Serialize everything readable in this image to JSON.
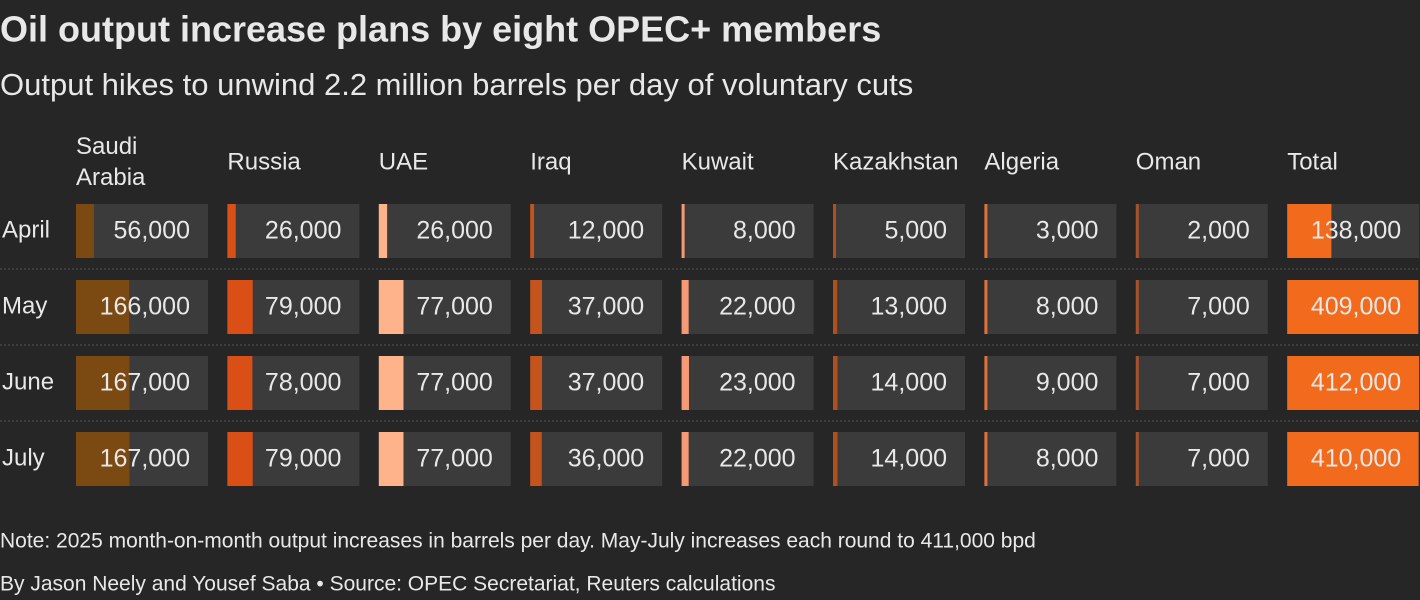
{
  "chart_data": {
    "type": "bar-table",
    "title": "Oil output increase plans by eight OPEC+ members",
    "subtitle": "Output hikes to unwind 2.2 million barrels per day of voluntary cuts",
    "categories": [
      "April",
      "May",
      "June",
      "July"
    ],
    "series": [
      {
        "name": "Saudi Arabia",
        "color": "#7a4a12",
        "values": [
          56000,
          166000,
          167000,
          167000
        ],
        "value_labels": [
          "56,000",
          "166,000",
          "167,000",
          "167,000"
        ]
      },
      {
        "name": "Russia",
        "color": "#d94f16",
        "values": [
          26000,
          79000,
          78000,
          79000
        ],
        "value_labels": [
          "26,000",
          "79,000",
          "78,000",
          "79,000"
        ]
      },
      {
        "name": "UAE",
        "color": "#ffb38a",
        "values": [
          26000,
          77000,
          77000,
          77000
        ],
        "value_labels": [
          "26,000",
          "77,000",
          "77,000",
          "77,000"
        ]
      },
      {
        "name": "Iraq",
        "color": "#c4541c",
        "values": [
          12000,
          37000,
          37000,
          36000
        ],
        "value_labels": [
          "12,000",
          "37,000",
          "37,000",
          "36,000"
        ]
      },
      {
        "name": "Kuwait",
        "color": "#f59a74",
        "values": [
          8000,
          22000,
          23000,
          22000
        ],
        "value_labels": [
          "8,000",
          "22,000",
          "23,000",
          "22,000"
        ]
      },
      {
        "name": "Kazakhstan",
        "color": "#b0501c",
        "values": [
          5000,
          13000,
          14000,
          14000
        ],
        "value_labels": [
          "5,000",
          "13,000",
          "14,000",
          "14,000"
        ]
      },
      {
        "name": "Algeria",
        "color": "#e0713b",
        "values": [
          3000,
          8000,
          9000,
          8000
        ],
        "value_labels": [
          "3,000",
          "8,000",
          "9,000",
          "8,000"
        ]
      },
      {
        "name": "Oman",
        "color": "#a5522a",
        "values": [
          2000,
          7000,
          7000,
          7000
        ],
        "value_labels": [
          "2,000",
          "7,000",
          "7,000",
          "7,000"
        ]
      },
      {
        "name": "Total",
        "color": "#f26a1b",
        "values": [
          138000,
          409000,
          412000,
          410000
        ],
        "value_labels": [
          "138,000",
          "409,000",
          "412,000",
          "410,000"
        ]
      }
    ],
    "note": "Note: 2025 month-on-month output increases in barrels per day. May-July increases each round to 411,000 bpd",
    "source": "By Jason Neely and Yousef Saba • Source: OPEC Secretariat, Reuters calculations"
  }
}
